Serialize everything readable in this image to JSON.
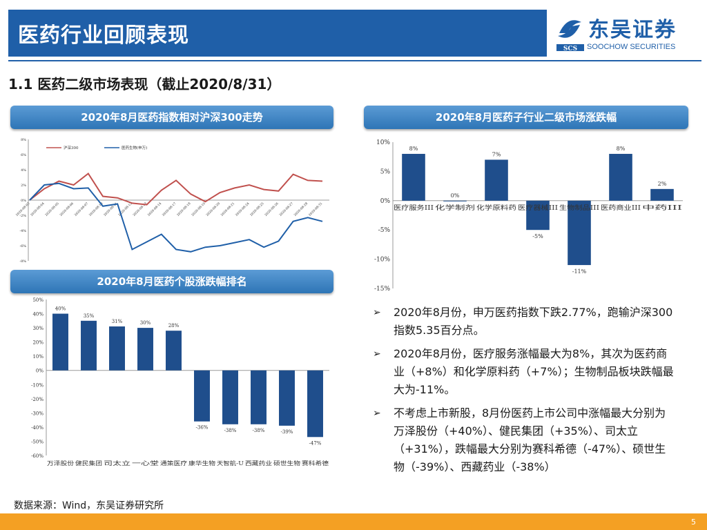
{
  "header": {
    "title": "医药行业回顾表现",
    "logo_cn": "东吴证券",
    "logo_en": "SOOCHOW SECURITIES",
    "logo_mark": "SCS"
  },
  "subtitle": "1.1 医药二级市场表现（截止2020/8/31）",
  "panels": {
    "line": "2020年8月医药指数相对沪深300走势",
    "sub": "2020年8月医药子行业二级市场涨跌幅",
    "stock": "2020年8月医药个股涨跌幅排名"
  },
  "chart_data": [
    {
      "type": "line",
      "title": "2020年8月医药指数相对沪深300走势",
      "legend": [
        "沪深300",
        "医药生物(申万)"
      ],
      "y_ticks": [
        "8%",
        "6%",
        "4%",
        "2%",
        "0%",
        "-2%",
        "-4%",
        "-6%",
        "-8%"
      ],
      "ylim": [
        -8,
        8
      ],
      "x_ticks": [
        "2020-08-03",
        "2020-08-04",
        "2020-08-05",
        "2020-08-06",
        "2020-08-07",
        "2020-08-10",
        "2020-08-11",
        "2020-08-12",
        "2020-08-13",
        "2020-08-14",
        "2020-08-17",
        "2020-08-18",
        "2020-08-19",
        "2020-08-20",
        "2020-08-21",
        "2020-08-24",
        "2020-08-25",
        "2020-08-26",
        "2020-08-27",
        "2020-08-28",
        "2020-08-31"
      ],
      "series": [
        {
          "name": "沪深300",
          "color": "#c0504d",
          "values": [
            0,
            1.5,
            2.5,
            2.0,
            3.5,
            0.5,
            0.3,
            -0.4,
            -0.6,
            1.3,
            2.6,
            0.8,
            -0.2,
            1.0,
            1.6,
            2.0,
            1.4,
            1.2,
            3.4,
            2.6,
            2.5
          ]
        },
        {
          "name": "医药生物(申万)",
          "color": "#1f5fa8",
          "values": [
            0,
            2.0,
            2.2,
            1.5,
            1.6,
            -0.8,
            -0.5,
            -6.5,
            -5.5,
            -4.5,
            -6.5,
            -6.8,
            -6.2,
            -6.0,
            -5.6,
            -5.2,
            -6.2,
            -5.4,
            -2.8,
            -2.3,
            -2.8
          ]
        }
      ]
    },
    {
      "type": "bar",
      "title": "2020年8月医药子行业二级市场涨跌幅",
      "categories": [
        "医疗服务III",
        "化学制剂",
        "化学原料药",
        "医疗器械III",
        "生物制品III",
        "医药商业III",
        "中药III"
      ],
      "values": [
        8,
        0,
        7,
        -5,
        -11,
        8,
        2
      ],
      "labels": [
        "8%",
        "0%",
        "7%",
        "-5%",
        "-11%",
        "8%",
        "2%"
      ],
      "y_ticks": [
        "10%",
        "5%",
        "0%",
        "-5%",
        "-10%",
        "-15%"
      ],
      "ylim": [
        -15,
        10
      ],
      "color": "#1f4e8c"
    },
    {
      "type": "bar",
      "title": "2020年8月医药个股涨跌幅排名",
      "categories": [
        "万泽股份",
        "健民集团",
        "司太立",
        "一心堂",
        "通策医疗",
        "康华生物",
        "天智航-U",
        "西藏药业",
        "硕世生物",
        "赛科希德"
      ],
      "values": [
        40,
        35,
        31,
        30,
        28,
        -36,
        -38,
        -38,
        -39,
        -47
      ],
      "labels": [
        "40%",
        "35%",
        "31%",
        "30%",
        "28%",
        "-36%",
        "-38%",
        "-38%",
        "-39%",
        "-47%"
      ],
      "y_ticks": [
        "50%",
        "40%",
        "30%",
        "20%",
        "10%",
        "0%",
        "-10%",
        "-20%",
        "-30%",
        "-40%",
        "-50%",
        "-60%"
      ],
      "ylim": [
        -60,
        50
      ],
      "color": "#1f4e8c"
    }
  ],
  "bullets": [
    "2020年8月份，申万医药指数下跌2.77%，跑输沪深300指数5.35百分点。",
    "2020年8月份，医疗服务涨幅最大为8%，其次为医药商业（+8%）和化学原料药（+7%）；生物制品板块跌幅最大为-11%。",
    "不考虑上市新股，8月份医药上市公司中涨幅最大分别为万泽股份（+40%）、健民集团（+35%）、司太立（+31%），跌幅最大分别为赛科希德（-47%）、硕世生物（-39%）、西藏药业（-38%）"
  ],
  "bullet_icon": "arrow-bullet-icon",
  "source": "数据来源：Wind，东吴证券研究所",
  "page_number": "5",
  "colors": {
    "brand": "#1f5fa8",
    "footer": "#f4a023",
    "bar": "#1f4e8c"
  }
}
